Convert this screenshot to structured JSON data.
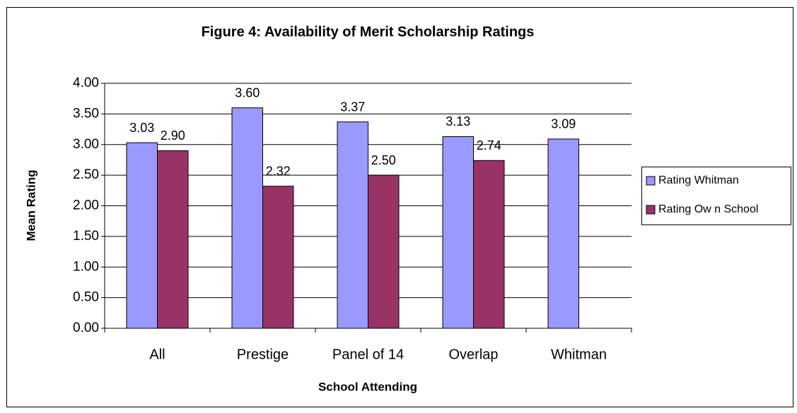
{
  "chart_data": {
    "type": "bar",
    "title": "Figure 4: Availability of Merit Scholarship Ratings",
    "x_label": "School Attending",
    "y_label": "Mean Rating",
    "categories": [
      "All",
      "Prestige",
      "Panel of 14",
      "Overlap",
      "Whitman"
    ],
    "series": [
      {
        "name": "Rating Whitman",
        "color": "#9999ff",
        "values": [
          3.03,
          3.6,
          3.37,
          3.13,
          3.09
        ],
        "value_labels": [
          "3.03",
          "3.60",
          "3.37",
          "3.13",
          "3.09"
        ]
      },
      {
        "name": "Rating Ow n School",
        "color": "#993366",
        "values": [
          2.9,
          2.32,
          2.5,
          2.74,
          null
        ],
        "value_labels": [
          "2.90",
          "2.32",
          "2.50",
          "2.74",
          null
        ]
      }
    ],
    "ylim": [
      0,
      4
    ],
    "yticks": [
      {
        "value": 0,
        "label": "0.00"
      },
      {
        "value": 0.5,
        "label": "0.50"
      },
      {
        "value": 1,
        "label": "1.00"
      },
      {
        "value": 1.5,
        "label": "1.50"
      },
      {
        "value": 2,
        "label": "2.00"
      },
      {
        "value": 2.5,
        "label": "2.50"
      },
      {
        "value": 3,
        "label": "3.00"
      },
      {
        "value": 3.5,
        "label": "3.50"
      },
      {
        "value": 4,
        "label": "4.00"
      }
    ],
    "grid": true,
    "legend": "right"
  }
}
